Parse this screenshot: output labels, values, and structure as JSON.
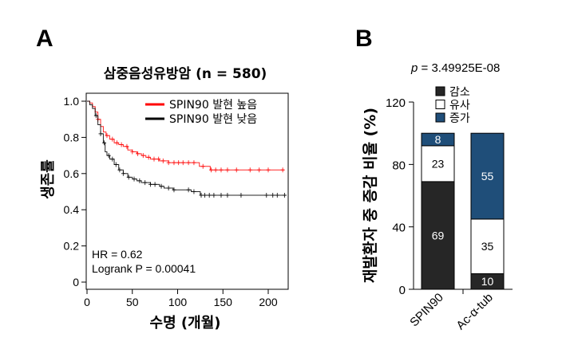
{
  "chart_data": [
    {
      "panel_label": "A",
      "type": "line",
      "title": "삼중음성유방암 (n = 580)",
      "xlabel": "수명 (개월)",
      "ylabel": "생존률",
      "xlim": [
        0,
        225
      ],
      "ylim": [
        0,
        1.05
      ],
      "xticks": [
        "0",
        "50",
        "100",
        "150",
        "200"
      ],
      "xtick_values": [
        0,
        50,
        100,
        150,
        200
      ],
      "yticks": [
        "0",
        "0.2",
        "0.4",
        "0.6",
        "0.8",
        "1.0"
      ],
      "ytick_values": [
        0,
        0.2,
        0.4,
        0.6,
        0.8,
        1.0
      ],
      "annotations": [
        "HR = 0.62",
        "Logrank P = 0.00041"
      ],
      "legend_position": "top-right",
      "series": [
        {
          "name": "SPIN90 발현 높음",
          "color": "#ff0000",
          "x": [
            0,
            3,
            6,
            9,
            12,
            15,
            18,
            21,
            25,
            30,
            35,
            40,
            45,
            50,
            55,
            60,
            65,
            70,
            80,
            90,
            100,
            110,
            122,
            124,
            134,
            136,
            218
          ],
          "y": [
            1,
            0.99,
            0.97,
            0.94,
            0.9,
            0.86,
            0.83,
            0.81,
            0.79,
            0.77,
            0.76,
            0.75,
            0.73,
            0.72,
            0.71,
            0.7,
            0.69,
            0.68,
            0.67,
            0.66,
            0.66,
            0.66,
            0.66,
            0.64,
            0.64,
            0.62,
            0.62
          ],
          "censored": [
            12,
            22,
            28,
            33,
            38,
            44,
            50,
            56,
            62,
            68,
            74,
            79,
            84,
            90,
            96,
            101,
            106,
            112,
            118,
            128,
            137,
            142,
            148,
            155,
            165,
            180,
            190,
            200,
            216
          ]
        },
        {
          "name": "SPIN90 발현 낮음",
          "color": "#000000",
          "x": [
            0,
            3,
            6,
            9,
            12,
            15,
            18,
            20,
            22,
            25,
            30,
            35,
            40,
            45,
            50,
            55,
            60,
            70,
            80,
            85,
            95,
            105,
            115,
            122,
            125,
            220
          ],
          "y": [
            1,
            0.98,
            0.96,
            0.92,
            0.87,
            0.82,
            0.77,
            0.72,
            0.7,
            0.68,
            0.65,
            0.62,
            0.6,
            0.58,
            0.57,
            0.56,
            0.55,
            0.54,
            0.53,
            0.52,
            0.51,
            0.51,
            0.5,
            0.5,
            0.48,
            0.48
          ],
          "censored": [
            10,
            15,
            19,
            24,
            28,
            32,
            36,
            40,
            46,
            52,
            58,
            64,
            70,
            75,
            82,
            90,
            96,
            112,
            118,
            126,
            130,
            135,
            140,
            148,
            155,
            170,
            198,
            205,
            210,
            218
          ]
        }
      ]
    },
    {
      "panel_label": "B",
      "type": "bar",
      "stacked": true,
      "annotation": "p = 3.49925E-08",
      "annotation_p": "p",
      "annotation_value": " = 3.49925E-08",
      "ylabel": "재발환자 중 증감 비율 (%)",
      "ylim": [
        0,
        120
      ],
      "yticks": [
        "0",
        "40",
        "80",
        "120"
      ],
      "ytick_values": [
        0,
        40,
        80,
        120
      ],
      "categories": [
        "SPIN90",
        "Ac-α-tub"
      ],
      "legend_position": "top",
      "series": [
        {
          "name": "감소",
          "color": "#262626",
          "label_color": "#ffffff",
          "values": [
            69,
            10
          ]
        },
        {
          "name": "유사",
          "color": "#ffffff",
          "label_color": "#000000",
          "values": [
            23,
            35
          ]
        },
        {
          "name": "증가",
          "color": "#1f4e79",
          "label_color": "#ffffff",
          "values": [
            8,
            55
          ]
        }
      ]
    }
  ]
}
